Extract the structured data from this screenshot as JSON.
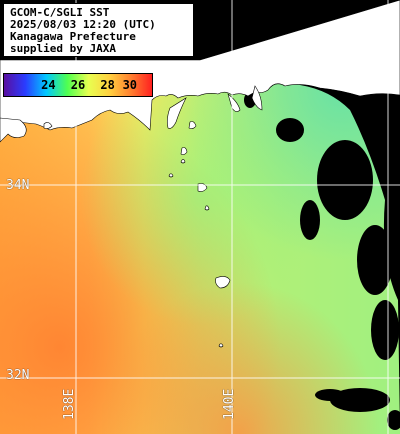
{
  "header": {
    "lines": [
      "GCOM-C/SGLI SST",
      "2025/08/03 12:20 (UTC)",
      "Kanagawa Prefecture",
      "supplied by JAXA"
    ]
  },
  "legend": {
    "ticks": [
      "24",
      "26",
      "28",
      "30"
    ],
    "colors": [
      "#5a0fa0",
      "#2a3cff",
      "#00c8ff",
      "#50ff50",
      "#e8ff50",
      "#ffd040",
      "#ff8030",
      "#ff2020"
    ]
  },
  "grid": {
    "labels": {
      "lat_34": "34N",
      "lat_32": "32N",
      "lon_138": "138E",
      "lon_140": "140E"
    }
  },
  "colors": {
    "land": "#ffffff",
    "cloud": "#000000",
    "grid": "#ffffff"
  }
}
